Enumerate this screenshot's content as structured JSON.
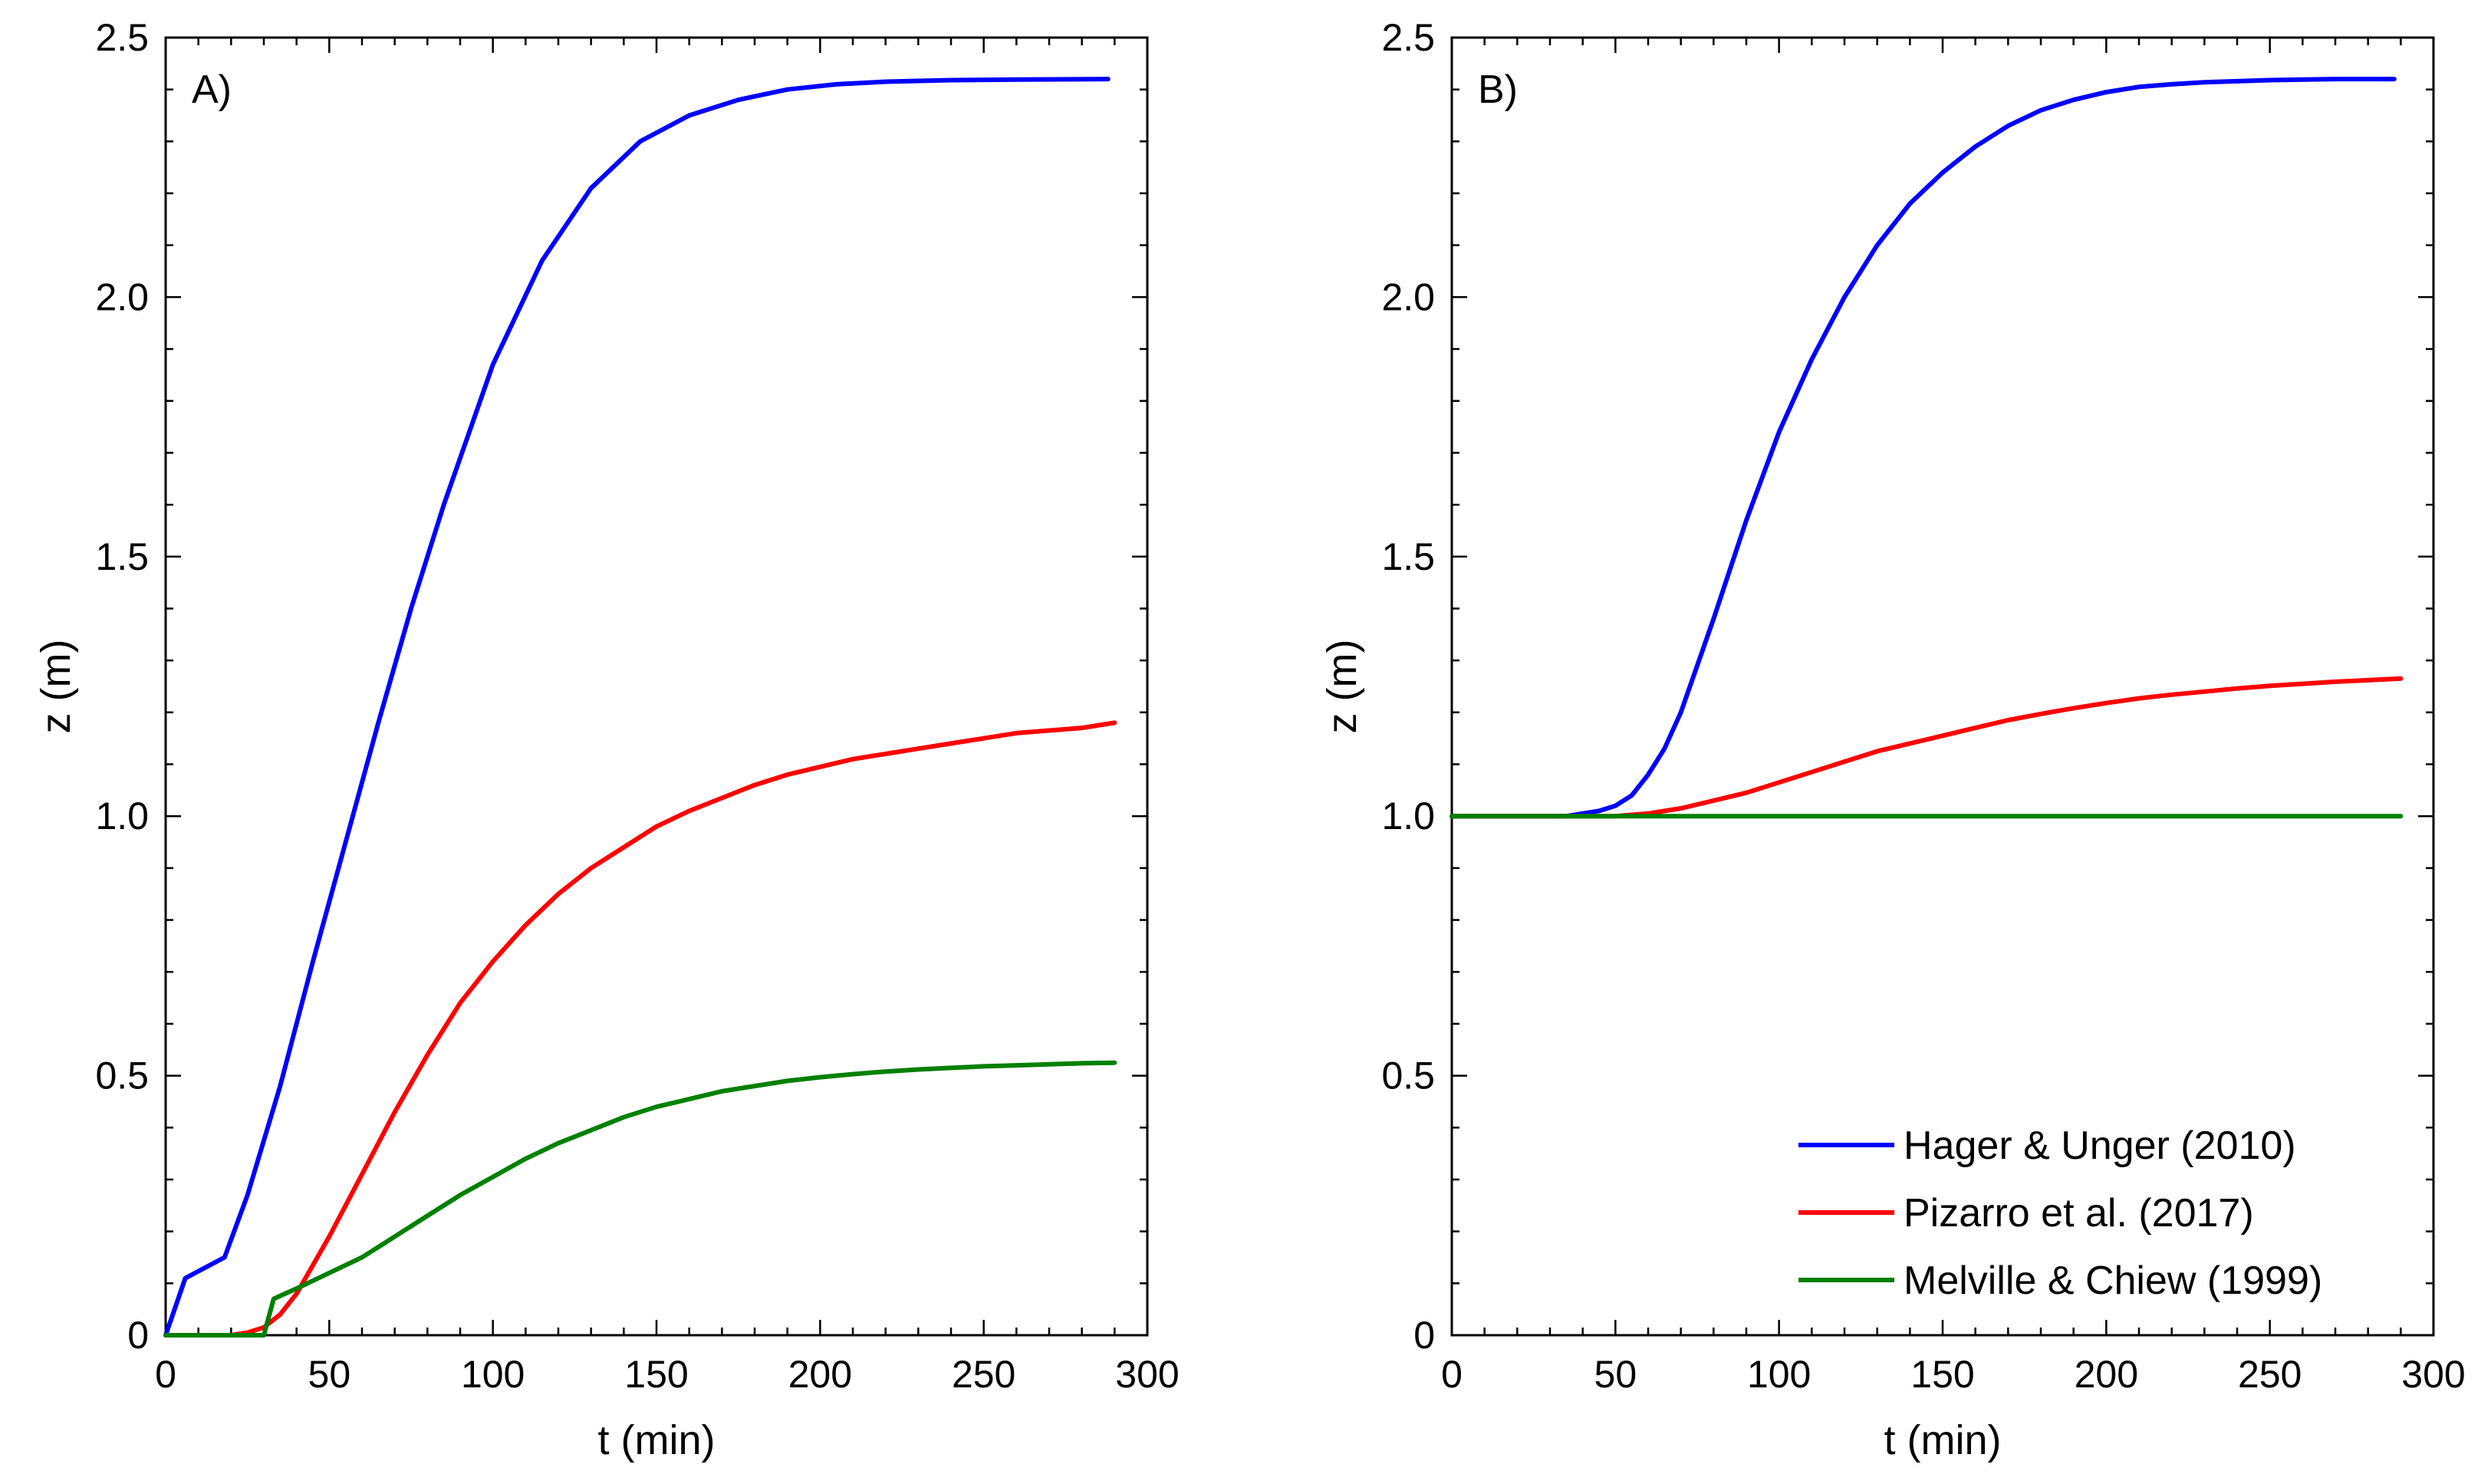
{
  "chart_data": [
    {
      "type": "line",
      "panel_label": "A)",
      "xlabel": "t (min)",
      "ylabel": "z (m)",
      "xlim": [
        0,
        300
      ],
      "ylim": [
        0,
        2.5
      ],
      "xticks": [
        0,
        50,
        100,
        150,
        200,
        250,
        300
      ],
      "xtick_labels": [
        "0",
        "50",
        "100",
        "150",
        "200",
        "250",
        "300"
      ],
      "yticks": [
        0,
        0.5,
        1.0,
        1.5,
        2.0,
        2.5
      ],
      "ytick_labels": [
        "0",
        "0.5",
        "1.0",
        "1.5",
        "2.0",
        "2.5"
      ],
      "grid": false,
      "series": [
        {
          "name": "Hager & Unger (2010)",
          "color": "#0000ff",
          "x": [
            0,
            6,
            18,
            25,
            35,
            45,
            55,
            65,
            75,
            85,
            100,
            115,
            130,
            145,
            160,
            175,
            190,
            205,
            220,
            240,
            260,
            288
          ],
          "y": [
            0,
            0.11,
            0.15,
            0.27,
            0.48,
            0.72,
            0.95,
            1.18,
            1.4,
            1.6,
            1.87,
            2.07,
            2.21,
            2.3,
            2.35,
            2.38,
            2.4,
            2.41,
            2.415,
            2.418,
            2.419,
            2.42
          ]
        },
        {
          "name": "Pizarro et al. (2017)",
          "color": "#ff0000",
          "x": [
            0,
            20,
            25,
            30,
            35,
            40,
            50,
            60,
            70,
            80,
            90,
            100,
            110,
            120,
            130,
            140,
            150,
            160,
            170,
            180,
            190,
            200,
            210,
            220,
            230,
            240,
            250,
            260,
            270,
            280,
            290
          ],
          "y": [
            0,
            0,
            0.005,
            0.015,
            0.04,
            0.08,
            0.19,
            0.31,
            0.43,
            0.54,
            0.64,
            0.72,
            0.79,
            0.85,
            0.9,
            0.94,
            0.98,
            1.01,
            1.035,
            1.06,
            1.08,
            1.095,
            1.11,
            1.12,
            1.13,
            1.14,
            1.15,
            1.16,
            1.165,
            1.17,
            1.18
          ]
        },
        {
          "name": "Melville & Chiew (1999)",
          "color": "#008000",
          "x": [
            0,
            30,
            33,
            40,
            50,
            60,
            70,
            80,
            90,
            100,
            110,
            120,
            130,
            140,
            150,
            160,
            170,
            180,
            190,
            200,
            210,
            220,
            230,
            240,
            250,
            260,
            270,
            280,
            290
          ],
          "y": [
            0,
            0,
            0.07,
            0.09,
            0.12,
            0.15,
            0.19,
            0.23,
            0.27,
            0.305,
            0.34,
            0.37,
            0.395,
            0.42,
            0.44,
            0.455,
            0.47,
            0.48,
            0.49,
            0.497,
            0.503,
            0.508,
            0.512,
            0.515,
            0.518,
            0.52,
            0.522,
            0.524,
            0.525
          ]
        }
      ]
    },
    {
      "type": "line",
      "panel_label": "B)",
      "xlabel": "t (min)",
      "ylabel": "z (m)",
      "xlim": [
        0,
        300
      ],
      "ylim": [
        0,
        2.5
      ],
      "xticks": [
        0,
        50,
        100,
        150,
        200,
        250,
        300
      ],
      "xtick_labels": [
        "0",
        "50",
        "100",
        "150",
        "200",
        "250",
        "300"
      ],
      "yticks": [
        0,
        0.5,
        1.0,
        1.5,
        2.0,
        2.5
      ],
      "ytick_labels": [
        "0",
        "0.5",
        "1.0",
        "1.5",
        "2.0",
        "2.5"
      ],
      "grid": false,
      "legend_position": "bottom-right",
      "series": [
        {
          "name": "Hager & Unger (2010)",
          "color": "#0000ff",
          "x": [
            0,
            35,
            45,
            50,
            55,
            60,
            65,
            70,
            80,
            90,
            100,
            110,
            120,
            130,
            140,
            150,
            160,
            170,
            180,
            190,
            200,
            210,
            220,
            230,
            240,
            250,
            260,
            270,
            280,
            288
          ],
          "y": [
            1.0,
            1.0,
            1.01,
            1.02,
            1.04,
            1.08,
            1.13,
            1.2,
            1.38,
            1.57,
            1.74,
            1.88,
            2.0,
            2.1,
            2.18,
            2.24,
            2.29,
            2.33,
            2.36,
            2.38,
            2.395,
            2.405,
            2.41,
            2.414,
            2.416,
            2.418,
            2.419,
            2.42,
            2.42,
            2.42
          ]
        },
        {
          "name": "Pizarro et al. (2017)",
          "color": "#ff0000",
          "x": [
            0,
            50,
            60,
            70,
            80,
            90,
            100,
            110,
            120,
            130,
            140,
            150,
            160,
            170,
            180,
            190,
            200,
            210,
            220,
            230,
            240,
            250,
            260,
            270,
            280,
            290
          ],
          "y": [
            1.0,
            1.0,
            1.005,
            1.015,
            1.03,
            1.045,
            1.065,
            1.085,
            1.105,
            1.125,
            1.14,
            1.155,
            1.17,
            1.185,
            1.197,
            1.208,
            1.218,
            1.227,
            1.234,
            1.24,
            1.246,
            1.251,
            1.255,
            1.259,
            1.262,
            1.265
          ]
        },
        {
          "name": "Melville & Chiew (1999)",
          "color": "#008000",
          "x": [
            0,
            290
          ],
          "y": [
            1.0,
            1.0
          ]
        }
      ]
    }
  ]
}
